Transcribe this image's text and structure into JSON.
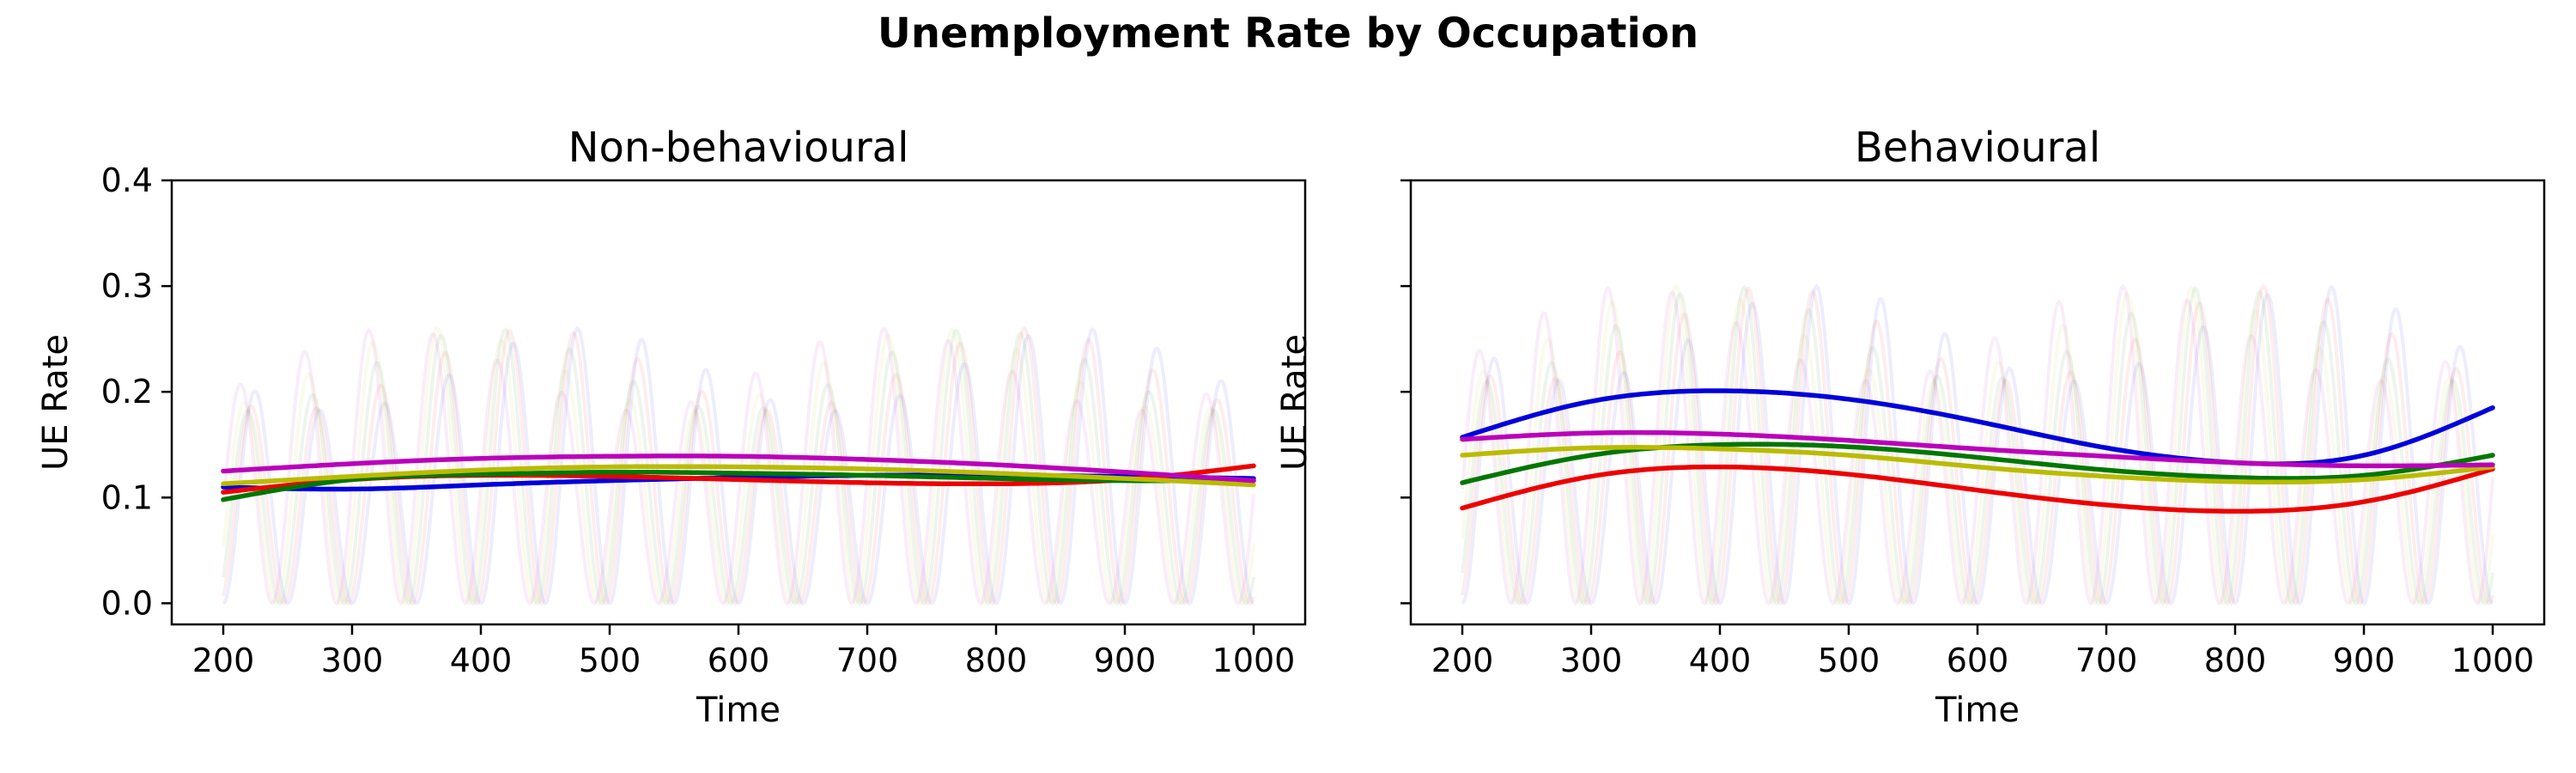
{
  "title": "Unemployment Rate by Occupation",
  "chart_data": [
    {
      "type": "line",
      "title": "Non-behavioural",
      "xlabel": "Time",
      "ylabel": "UE Rate",
      "xlim": [
        160,
        1040
      ],
      "ylim": [
        -0.02,
        0.4
      ],
      "xticks": [
        200,
        300,
        400,
        500,
        600,
        700,
        800,
        900,
        1000
      ],
      "yticks": [
        0.0,
        0.1,
        0.2,
        0.3,
        0.4
      ],
      "ytick_labels": [
        "0.0",
        "0.1",
        "0.2",
        "0.3",
        "0.4"
      ],
      "x": [
        200,
        300,
        400,
        500,
        600,
        700,
        800,
        900,
        1000
      ],
      "series": [
        {
          "color": "#0000dd",
          "values": [
            0.11,
            0.108,
            0.112,
            0.116,
            0.119,
            0.121,
            0.121,
            0.12,
            0.118
          ]
        },
        {
          "color": "#ee0000",
          "values": [
            0.105,
            0.117,
            0.121,
            0.12,
            0.117,
            0.114,
            0.113,
            0.117,
            0.13
          ]
        },
        {
          "color": "#007700",
          "values": [
            0.098,
            0.117,
            0.122,
            0.124,
            0.123,
            0.121,
            0.118,
            0.116,
            0.116
          ]
        },
        {
          "color": "#bbbb00",
          "values": [
            0.113,
            0.12,
            0.126,
            0.129,
            0.129,
            0.127,
            0.123,
            0.118,
            0.112
          ]
        },
        {
          "color": "#bb00bb",
          "values": [
            0.125,
            0.132,
            0.137,
            0.139,
            0.139,
            0.136,
            0.131,
            0.124,
            0.116
          ]
        }
      ],
      "background_cycles": {
        "period": 50,
        "start": 200,
        "end": 1000,
        "low": 0.0,
        "high": 0.26,
        "colors": [
          "#0000dd",
          "#ee0000",
          "#007700",
          "#bbbb00",
          "#bb00bb"
        ],
        "opacity": 0.07
      }
    },
    {
      "type": "line",
      "title": "Behavioural",
      "xlabel": "Time",
      "ylabel": "UE Rate",
      "xlim": [
        160,
        1040
      ],
      "ylim": [
        -0.02,
        0.4
      ],
      "xticks": [
        200,
        300,
        400,
        500,
        600,
        700,
        800,
        900,
        1000
      ],
      "yticks": [
        0.0,
        0.1,
        0.2,
        0.3,
        0.4
      ],
      "ytick_labels": [],
      "x": [
        200,
        300,
        400,
        500,
        600,
        700,
        800,
        900,
        1000
      ],
      "series": [
        {
          "color": "#0000dd",
          "values": [
            0.157,
            0.191,
            0.201,
            0.193,
            0.172,
            0.147,
            0.133,
            0.14,
            0.185
          ]
        },
        {
          "color": "#ee0000",
          "values": [
            0.09,
            0.12,
            0.129,
            0.122,
            0.107,
            0.093,
            0.087,
            0.096,
            0.127
          ]
        },
        {
          "color": "#007700",
          "values": [
            0.114,
            0.14,
            0.15,
            0.148,
            0.138,
            0.126,
            0.119,
            0.121,
            0.14
          ]
        },
        {
          "color": "#bbbb00",
          "values": [
            0.14,
            0.147,
            0.146,
            0.14,
            0.129,
            0.12,
            0.115,
            0.117,
            0.129
          ]
        },
        {
          "color": "#bb00bb",
          "values": [
            0.155,
            0.161,
            0.16,
            0.154,
            0.146,
            0.139,
            0.133,
            0.13,
            0.131
          ]
        }
      ],
      "background_cycles": {
        "period": 50,
        "start": 200,
        "end": 1000,
        "low": 0.0,
        "high": 0.3,
        "colors": [
          "#0000dd",
          "#ee0000",
          "#007700",
          "#bbbb00",
          "#bb00bb"
        ],
        "opacity": 0.07
      }
    }
  ]
}
